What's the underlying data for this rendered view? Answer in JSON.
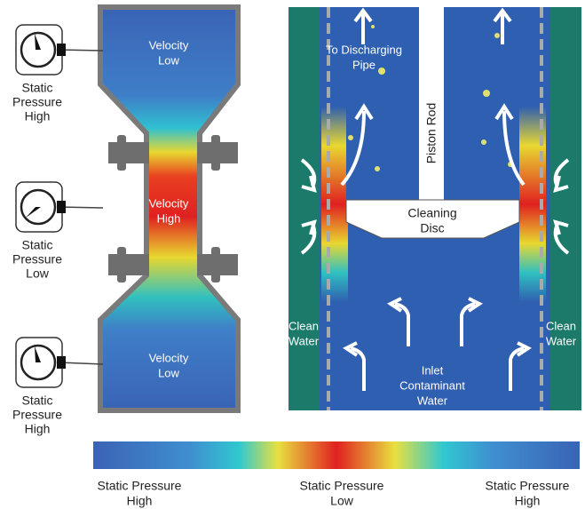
{
  "venturi": {
    "top": [
      "Velocity",
      "Low"
    ],
    "throat": [
      "Velocity",
      "High"
    ],
    "bottom": [
      "Velocity",
      "Low"
    ],
    "gauges": [
      [
        "Static",
        "Pressure",
        "High"
      ],
      [
        "Static",
        "Pressure",
        "Low"
      ],
      [
        "Static",
        "Pressure",
        "High"
      ]
    ]
  },
  "cleaner": {
    "discharge": [
      "To Discharging",
      "Pipe"
    ],
    "piston_rod": "Piston Rod",
    "disc": [
      "Cleaning",
      "Disc"
    ],
    "clean_water_left": [
      "Clean",
      "Water"
    ],
    "clean_water_right": [
      "Clean",
      "Water"
    ],
    "inlet": [
      "Inlet",
      "Contaminant",
      "Water"
    ]
  },
  "colorbar": {
    "labels": [
      [
        "Static Pressure",
        "High"
      ],
      [
        "Static Pressure",
        "Low"
      ],
      [
        "Static Pressure",
        "High"
      ]
    ]
  }
}
